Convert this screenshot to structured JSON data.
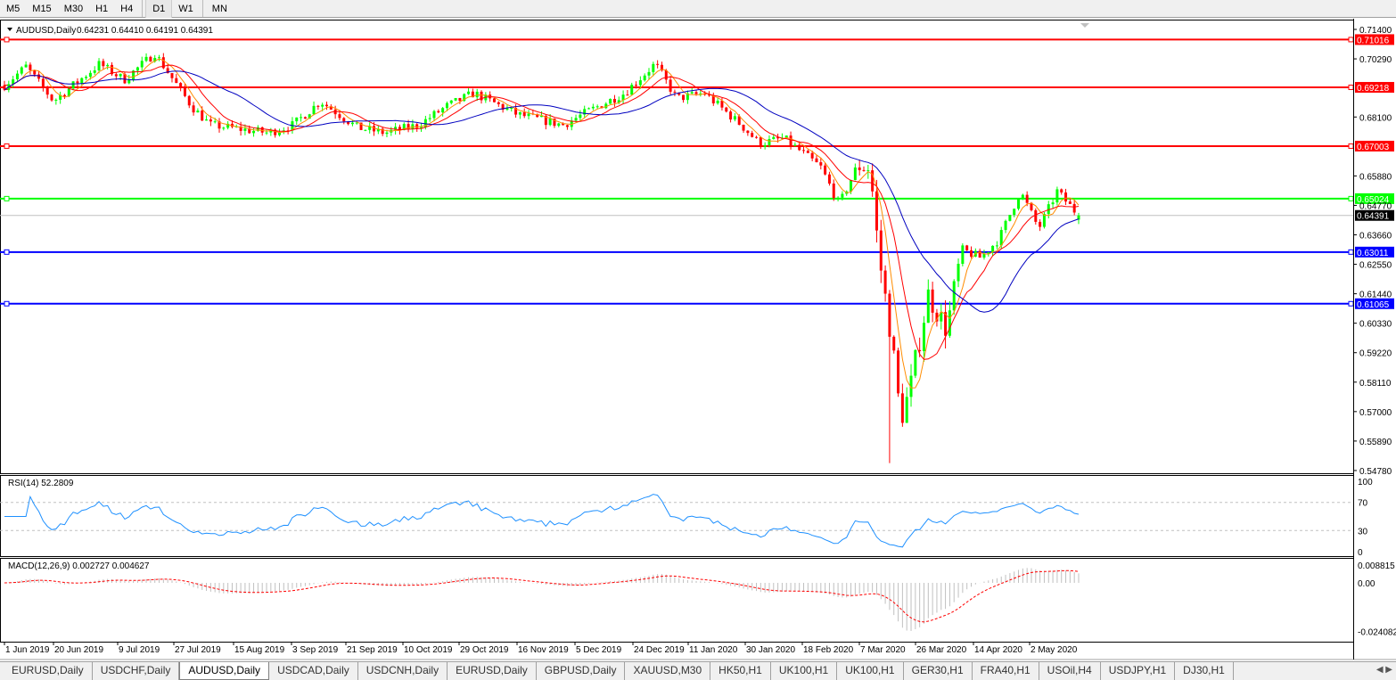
{
  "toolbar": {
    "timeframes": [
      "M5",
      "M15",
      "M30",
      "H1",
      "H4",
      "D1",
      "W1",
      "MN"
    ],
    "active": "D1"
  },
  "chart_header": {
    "symbol": "AUDUSD,Daily",
    "ohlc": "0.64231 0.64410 0.64191 0.64391"
  },
  "price_axis": {
    "ticks": [
      "0.71400",
      "0.70290",
      "0.68100",
      "0.65880",
      "0.64770",
      "0.63660",
      "0.62550",
      "0.61440",
      "0.60330",
      "0.59220",
      "0.58110",
      "0.57000",
      "0.55890",
      "0.54780"
    ],
    "current": "0.64391"
  },
  "levels": [
    {
      "price": "0.71016",
      "color": "#ff0000"
    },
    {
      "price": "0.69218",
      "color": "#ff0000"
    },
    {
      "price": "0.67003",
      "color": "#ff0000"
    },
    {
      "price": "0.65024",
      "color": "#00ff00"
    },
    {
      "price": "0.63011",
      "color": "#0000ff"
    },
    {
      "price": "0.61065",
      "color": "#0000ff"
    }
  ],
  "rsi": {
    "label": "RSI(14) 52.2809",
    "ticks": [
      "100",
      "70",
      "30",
      "0"
    ]
  },
  "macd": {
    "label": "MACD(12,26,9) 0.002727 0.004627",
    "ticks": [
      "0.008815",
      "0.00",
      "-0.024082"
    ]
  },
  "date_axis": [
    "1 Jun 2019",
    "20 Jun 2019",
    "9 Jul 2019",
    "27 Jul 2019",
    "15 Aug 2019",
    "3 Sep 2019",
    "21 Sep 2019",
    "10 Oct 2019",
    "29 Oct 2019",
    "16 Nov 2019",
    "5 Dec 2019",
    "24 Dec 2019",
    "11 Jan 2020",
    "30 Jan 2020",
    "18 Feb 2020",
    "7 Mar 2020",
    "26 Mar 2020",
    "14 Apr 2020",
    "2 May 2020"
  ],
  "colors": {
    "bull": "#00ff00",
    "bear": "#ff0000",
    "ma_fast": "#ff8c00",
    "ma_mid": "#ff0000",
    "ma_slow": "#0000c0",
    "rsi": "#1e90ff",
    "macd_signal": "#ff0000",
    "macd_hist": "#c0c0c0"
  },
  "chart_data": {
    "type": "candlestick",
    "symbol": "AUDUSD",
    "timeframe": "Daily",
    "ylim": [
      0.5478,
      0.714
    ],
    "approx_close_path": [
      [
        "2019-06-01",
        0.693
      ],
      [
        "2019-06-08",
        0.7
      ],
      [
        "2019-06-17",
        0.687
      ],
      [
        "2019-07-02",
        0.701
      ],
      [
        "2019-07-10",
        0.695
      ],
      [
        "2019-07-20",
        0.705
      ],
      [
        "2019-08-01",
        0.685
      ],
      [
        "2019-08-07",
        0.678
      ],
      [
        "2019-08-26",
        0.675
      ],
      [
        "2019-09-03",
        0.678
      ],
      [
        "2019-09-12",
        0.687
      ],
      [
        "2019-09-24",
        0.677
      ],
      [
        "2019-10-03",
        0.675
      ],
      [
        "2019-10-14",
        0.678
      ],
      [
        "2019-10-23",
        0.685
      ],
      [
        "2019-11-01",
        0.69
      ],
      [
        "2019-11-15",
        0.682
      ],
      [
        "2019-11-30",
        0.678
      ],
      [
        "2019-12-08",
        0.683
      ],
      [
        "2019-12-20",
        0.69
      ],
      [
        "2019-12-30",
        0.701
      ],
      [
        "2020-01-06",
        0.688
      ],
      [
        "2020-01-15",
        0.69
      ],
      [
        "2020-01-27",
        0.678
      ],
      [
        "2020-02-02",
        0.671
      ],
      [
        "2020-02-10",
        0.673
      ],
      [
        "2020-02-22",
        0.662
      ],
      [
        "2020-02-28",
        0.648
      ],
      [
        "2020-03-05",
        0.663
      ],
      [
        "2020-03-09",
        0.662
      ],
      [
        "2020-03-12",
        0.628
      ],
      [
        "2020-03-16",
        0.598
      ],
      [
        "2020-03-19",
        0.567
      ],
      [
        "2020-03-22",
        0.578
      ],
      [
        "2020-03-28",
        0.614
      ],
      [
        "2020-04-03",
        0.601
      ],
      [
        "2020-04-08",
        0.631
      ],
      [
        "2020-04-14",
        0.628
      ],
      [
        "2020-04-20",
        0.635
      ],
      [
        "2020-04-27",
        0.653
      ],
      [
        "2020-05-03",
        0.639
      ],
      [
        "2020-05-09",
        0.653
      ],
      [
        "2020-05-16",
        0.6439
      ]
    ],
    "low": 0.5506
  },
  "tabs": [
    "EURUSD,Daily",
    "USDCHF,Daily",
    "AUDUSD,Daily",
    "USDCAD,Daily",
    "USDCNH,Daily",
    "EURUSD,Daily",
    "GBPUSD,Daily",
    "XAUUSD,M30",
    "HK50,H1",
    "UK100,H1",
    "UK100,H1",
    "GER30,H1",
    "FRA40,H1",
    "USOil,H4",
    "USDJPY,H1",
    "DJ30,H1"
  ],
  "active_tab": "AUDUSD,Daily"
}
